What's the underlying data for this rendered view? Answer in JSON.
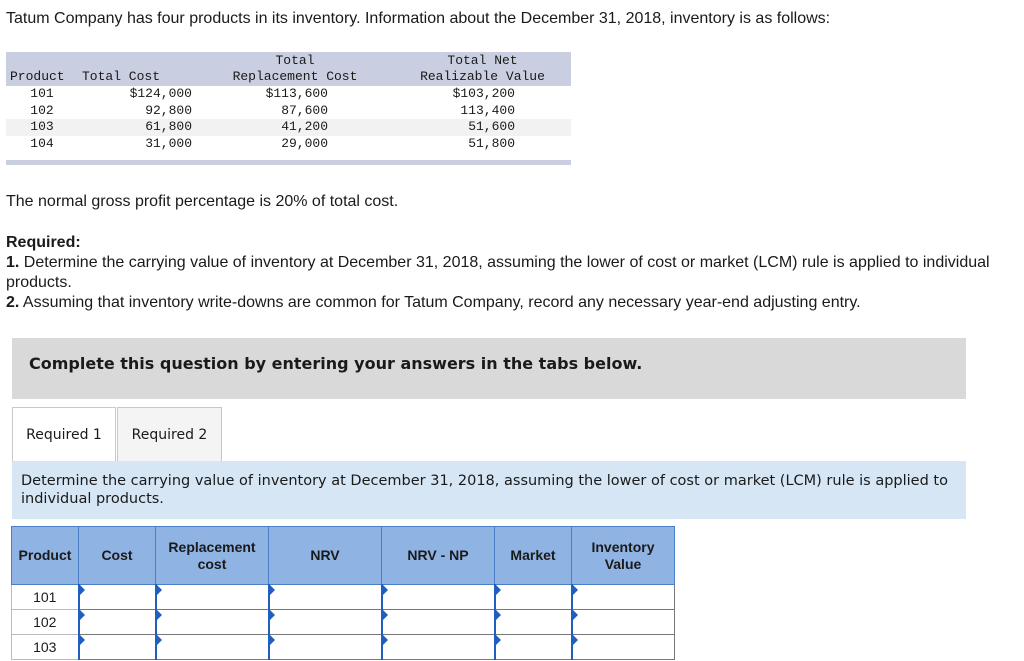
{
  "intro": "Tatum Company has four products in its inventory. Information about the December 31, 2018, inventory is as follows:",
  "inventory": {
    "headers": {
      "product": "Product",
      "total_cost": "Total Cost",
      "replacement_l1": "Total",
      "replacement_l2": "Replacement Cost",
      "nrv_l1": "Total Net",
      "nrv_l2": "Realizable Value"
    },
    "rows": [
      {
        "product": "101",
        "cost": "$124,000",
        "replacement": "$113,600",
        "nrv": "$103,200"
      },
      {
        "product": "102",
        "cost": "92,800",
        "replacement": "87,600",
        "nrv": "113,400"
      },
      {
        "product": "103",
        "cost": "61,800",
        "replacement": "41,200",
        "nrv": "51,600"
      },
      {
        "product": "104",
        "cost": "31,000",
        "replacement": "29,000",
        "nrv": "51,800"
      }
    ]
  },
  "gross_profit_note": "The normal gross profit percentage is 20% of total cost.",
  "required": {
    "heading": "Required:",
    "item1_num": "1.",
    "item1_text": "Determine the carrying value of inventory at December 31, 2018, assuming the lower of cost or market (LCM) rule is applied to individual products.",
    "item2_num": "2.",
    "item2_text": "Assuming that inventory write-downs are common for Tatum Company, record any necessary year-end adjusting entry."
  },
  "banner": "Complete this question by entering your answers in the tabs below.",
  "tabs": [
    {
      "label": "Required 1",
      "active": true
    },
    {
      "label": "Required 2",
      "active": false
    }
  ],
  "instruction": "Determine the carrying value of inventory at December 31, 2018, assuming the lower of cost or market (LCM) rule is applied to individual products.",
  "answer_table": {
    "headers": {
      "product": "Product",
      "cost": "Cost",
      "replacement": "Replacement cost",
      "nrv": "NRV",
      "nrv_np": "NRV - NP",
      "market": "Market",
      "inventory_value": "Inventory Value"
    },
    "rows": [
      {
        "product": "101"
      },
      {
        "product": "102"
      },
      {
        "product": "103"
      }
    ]
  },
  "colors": {
    "table_header_bg": "#c9cfe0",
    "banner_bg": "#d9d9d9",
    "instruction_bg": "#d6e6f5",
    "answer_header_bg": "#8fb3e3",
    "input_marker": "#1f5fbf"
  }
}
